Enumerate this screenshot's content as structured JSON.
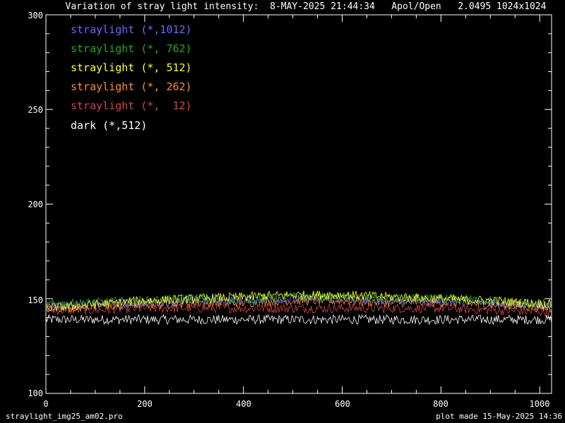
{
  "chart_data": {
    "type": "line",
    "title": "Variation of stray light intensity:  8-MAY-2025 21:44:34   Apol/Open   2.0495 1024x1024",
    "xlim": [
      0,
      1024
    ],
    "ylim": [
      100,
      300
    ],
    "x_ticks": [
      "0",
      "200",
      "400",
      "600",
      "800",
      "1000"
    ],
    "y_ticks": [
      "100",
      "150",
      "200",
      "250",
      "300"
    ],
    "legend_position": "top-left",
    "grid": false,
    "series": [
      {
        "name": "straylight (*,1012)",
        "color": "#6a6aff",
        "points": [
          [
            0,
            146
          ],
          [
            100,
            147
          ],
          [
            200,
            148
          ],
          [
            300,
            149
          ],
          [
            400,
            149
          ],
          [
            500,
            150
          ],
          [
            600,
            150
          ],
          [
            700,
            149
          ],
          [
            800,
            149
          ],
          [
            900,
            148
          ],
          [
            1024,
            146
          ]
        ]
      },
      {
        "name": "straylight (*, 762)",
        "color": "#22aa22",
        "points": [
          [
            0,
            147
          ],
          [
            100,
            148
          ],
          [
            200,
            149
          ],
          [
            300,
            150
          ],
          [
            400,
            150
          ],
          [
            500,
            151
          ],
          [
            600,
            151
          ],
          [
            700,
            150
          ],
          [
            800,
            150
          ],
          [
            900,
            149
          ],
          [
            1024,
            147
          ]
        ]
      },
      {
        "name": "straylight (*, 512)",
        "color": "#ffff33",
        "points": [
          [
            0,
            145
          ],
          [
            100,
            147
          ],
          [
            200,
            149
          ],
          [
            300,
            150
          ],
          [
            400,
            151
          ],
          [
            500,
            152
          ],
          [
            600,
            152
          ],
          [
            700,
            151
          ],
          [
            800,
            150
          ],
          [
            900,
            149
          ],
          [
            1024,
            147
          ]
        ]
      },
      {
        "name": "straylight (*, 262)",
        "color": "#ff8c32",
        "points": [
          [
            0,
            145
          ],
          [
            100,
            146
          ],
          [
            200,
            147
          ],
          [
            300,
            148
          ],
          [
            400,
            148
          ],
          [
            500,
            149
          ],
          [
            600,
            149
          ],
          [
            700,
            148
          ],
          [
            800,
            148
          ],
          [
            900,
            147
          ],
          [
            1024,
            145
          ]
        ]
      },
      {
        "name": "straylight (*,  12)",
        "color": "#d24646",
        "points": [
          [
            0,
            144
          ],
          [
            100,
            144
          ],
          [
            200,
            145
          ],
          [
            300,
            145
          ],
          [
            400,
            145
          ],
          [
            500,
            145
          ],
          [
            600,
            145
          ],
          [
            700,
            145
          ],
          [
            800,
            145
          ],
          [
            900,
            144
          ],
          [
            1024,
            143
          ]
        ]
      },
      {
        "name": "dark (*,512)",
        "color": "#ffffff",
        "points": [
          [
            0,
            139
          ],
          [
            100,
            139
          ],
          [
            200,
            139
          ],
          [
            300,
            139
          ],
          [
            400,
            139
          ],
          [
            500,
            139
          ],
          [
            600,
            139
          ],
          [
            700,
            139
          ],
          [
            800,
            139
          ],
          [
            900,
            139
          ],
          [
            1024,
            139
          ]
        ]
      }
    ]
  },
  "footer": {
    "program": "straylight_img25_am02.pro",
    "made": "plot made 15-May-2025 14:36"
  }
}
